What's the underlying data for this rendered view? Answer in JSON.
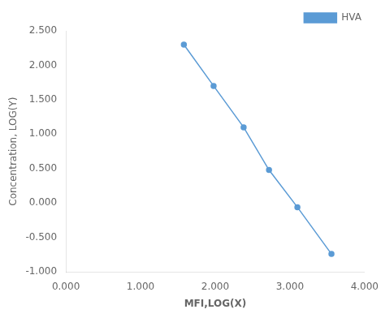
{
  "chart_data": {
    "type": "line",
    "x_label": "MFI,LOG(X)",
    "y_label": "Concentration, LOG(Y)",
    "x": [
      1.58,
      1.978,
      2.38,
      2.72,
      3.1,
      3.556
    ],
    "series": [
      {
        "name": "HVA",
        "color": "#5b9bd5",
        "marker": "circle",
        "line_style": "solid",
        "values": [
          2.3,
          1.7,
          1.1,
          0.48,
          -0.06,
          -0.74
        ]
      }
    ],
    "xlim": [
      0.0,
      4.0
    ],
    "ylim": [
      -1.0,
      2.5
    ],
    "xticks": [
      {
        "value": 0.0,
        "label": "0.000"
      },
      {
        "value": 1.0,
        "label": "1.000"
      },
      {
        "value": 2.0,
        "label": "2.000"
      },
      {
        "value": 3.0,
        "label": "3.000"
      },
      {
        "value": 4.0,
        "label": "4.000"
      }
    ],
    "yticks": [
      {
        "value": -1.0,
        "label": "-1.000"
      },
      {
        "value": -0.5,
        "label": "-0.500"
      },
      {
        "value": 0.0,
        "label": "0.000"
      },
      {
        "value": 0.5,
        "label": "0.500"
      },
      {
        "value": 1.0,
        "label": "1.000"
      },
      {
        "value": 1.5,
        "label": "1.500"
      },
      {
        "value": 2.0,
        "label": "2.000"
      },
      {
        "value": 2.5,
        "label": "2.500"
      }
    ],
    "grid": false,
    "legend": "upper right"
  }
}
